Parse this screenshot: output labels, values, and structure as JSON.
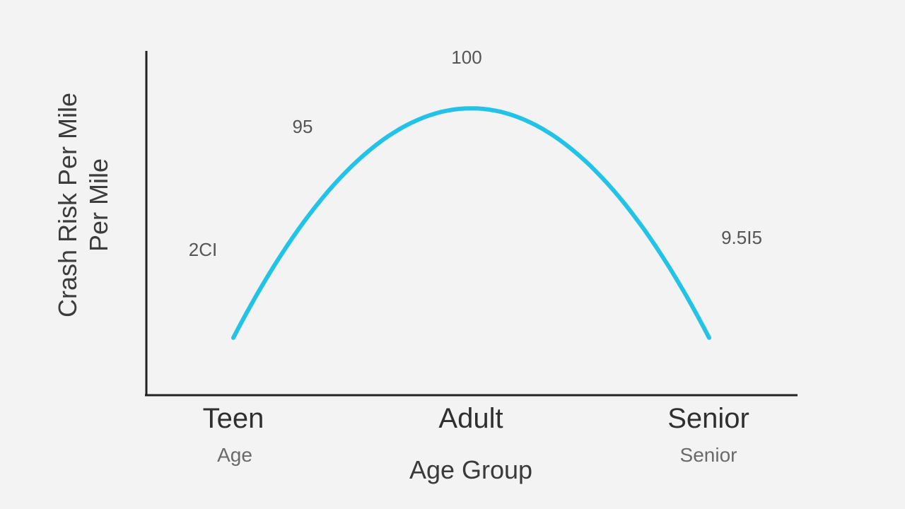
{
  "chart_data": {
    "type": "line",
    "title": "",
    "xlabel": "Age Group",
    "ylabel_lines": [
      "Crash Risk Per Mile",
      "Per Mile"
    ],
    "categories": [
      "Teen",
      "Adult",
      "Senior"
    ],
    "category_sublabels": [
      "Age",
      "",
      "Senior"
    ],
    "series": [
      {
        "values": [
          20,
          100,
          20
        ]
      }
    ],
    "data_labels": [
      {
        "text": "2CI",
        "near": "Teen"
      },
      {
        "text": "95",
        "near": "rising-segment"
      },
      {
        "text": "100",
        "near": "Adult"
      },
      {
        "text": "9.5I5",
        "near": "Senior"
      }
    ],
    "ylim": [
      0,
      120
    ],
    "grid": false,
    "line_color": "#22c3e6",
    "axis_color": "#222222"
  }
}
